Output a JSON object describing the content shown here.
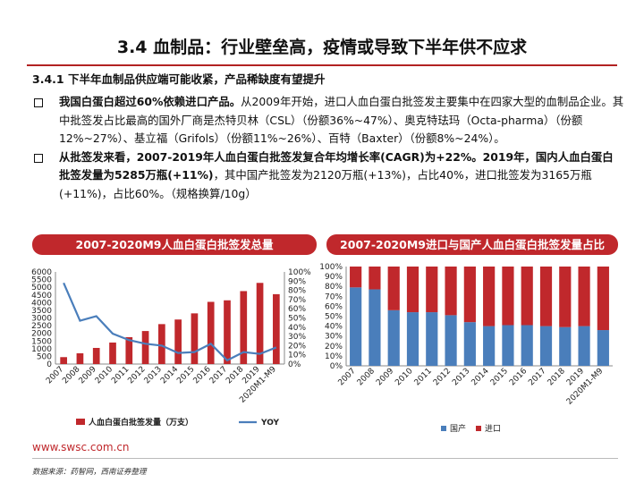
{
  "header": {
    "title": "3.4 血制品：行业壁垒高，疫情或导致下半年供不应求",
    "subtitle": "3.4.1 下半年血制品供应端可能收紧，产品稀缺度有望提升"
  },
  "bullets": [
    {
      "lead": "我国白蛋白超过60%依赖进口产品。",
      "text": "从2009年开始，进口人血白蛋白批签发主要集中在四家大型的血制品企业。其中批签发占比最高的国外厂商是杰特贝林（CSL）（份额36%~47%）、奥克特珐玛（Octa-pharma）（份额12%~27%）、基立福（Grifols）（份额11%~26%）、百特（Baxter）（份额8%~24%）。"
    },
    {
      "lead": "从批签发来看，2007-2019年人血白蛋白批签发复合年均增长率(CAGR)为+22%。2019年，国内人血白蛋白批签发量为5285万瓶(+11%)",
      "text": "，其中国产批签发为2120万瓶(+13%)，占比40%，进口批签发为3165万瓶(+11%)，占比60%。（规格换算/10g）"
    }
  ],
  "chart_data": [
    {
      "type": "bar",
      "title": "2007-2020M9人血白蛋白批签发总量",
      "categories": [
        "2007",
        "2008",
        "2009",
        "2010",
        "2011",
        "2012",
        "2013",
        "2014",
        "2015",
        "2016",
        "2017",
        "2018",
        "2019",
        "2020M1-M9"
      ],
      "series": [
        {
          "name": "人血白蛋白批签发量（万支）",
          "type": "bar",
          "axis": "left",
          "color": "#c0282c",
          "values": [
            450,
            700,
            1050,
            1400,
            1750,
            2150,
            2600,
            2900,
            3300,
            4050,
            4150,
            4750,
            5285,
            4550
          ]
        },
        {
          "name": "YOY",
          "type": "line",
          "axis": "right",
          "color": "#4a7ebb",
          "values": [
            0.88,
            0.47,
            0.52,
            0.33,
            0.26,
            0.22,
            0.2,
            0.12,
            0.13,
            0.22,
            0.04,
            0.13,
            0.11,
            0.18
          ]
        }
      ],
      "ylim_left": [
        0,
        6000
      ],
      "yticks_left": [
        0,
        500,
        1000,
        1500,
        2000,
        2500,
        3000,
        3500,
        4000,
        4500,
        5000,
        5500,
        6000
      ],
      "ylim_right": [
        0,
        1.0
      ],
      "yticks_right": [
        "0%",
        "10%",
        "20%",
        "30%",
        "40%",
        "50%",
        "60%",
        "70%",
        "80%",
        "90%",
        "100%"
      ],
      "legend": "bottom"
    },
    {
      "type": "bar",
      "stacked": "percent",
      "title": "2007-2020M9进口与国产人血白蛋白批签发量占比",
      "categories": [
        "2007",
        "2008",
        "2009",
        "2010",
        "2011",
        "2012",
        "2013",
        "2014",
        "2015",
        "2016",
        "2017",
        "2018",
        "2019",
        "2020M1-M9"
      ],
      "series": [
        {
          "name": "国产",
          "color": "#4a7ebb",
          "values": [
            0.79,
            0.77,
            0.56,
            0.54,
            0.54,
            0.51,
            0.44,
            0.4,
            0.41,
            0.41,
            0.4,
            0.39,
            0.4,
            0.36
          ]
        },
        {
          "name": "进口",
          "color": "#c0282c",
          "values": [
            0.21,
            0.23,
            0.44,
            0.46,
            0.46,
            0.49,
            0.56,
            0.6,
            0.59,
            0.59,
            0.6,
            0.61,
            0.6,
            0.64
          ]
        }
      ],
      "ylim": [
        0,
        1.0
      ],
      "yticks": [
        "0%",
        "10%",
        "20%",
        "30%",
        "40%",
        "50%",
        "60%",
        "70%",
        "80%",
        "90%",
        "100%"
      ],
      "legend": "bottom"
    }
  ],
  "footer": {
    "url": "www.swsc.com.cn",
    "source": "数据来源：药智网，西南证券整理"
  }
}
